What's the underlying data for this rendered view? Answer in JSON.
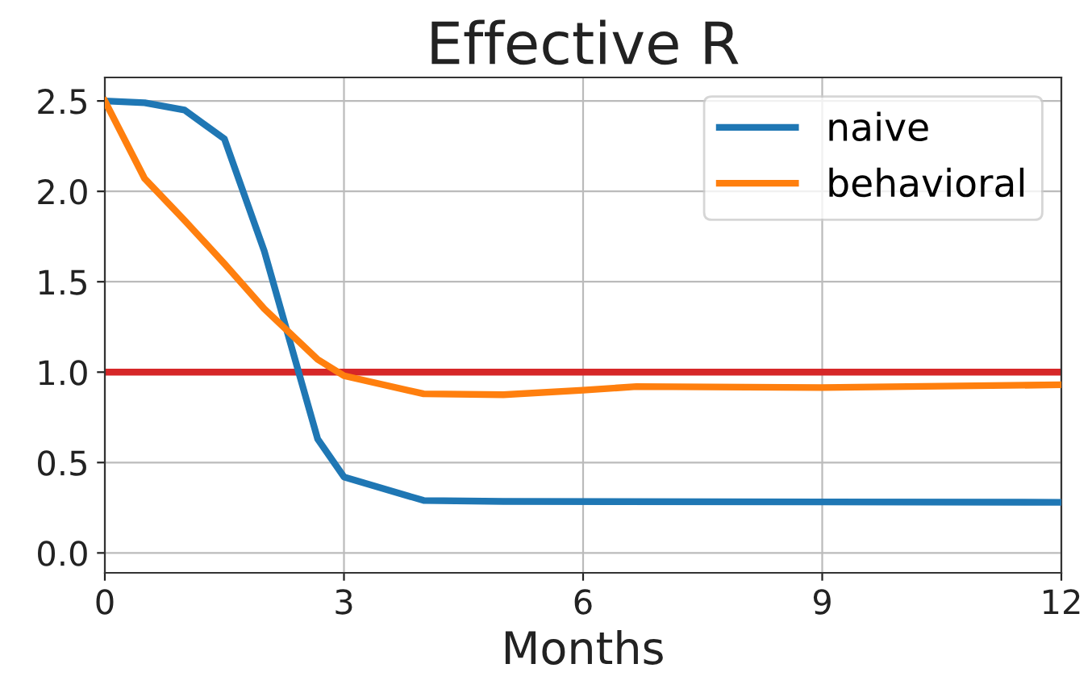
{
  "chart_data": {
    "type": "line",
    "title": "Effective R",
    "xlabel": "Months",
    "xlim": [
      0,
      12
    ],
    "xticks": [
      0,
      3,
      6,
      9,
      12
    ],
    "ylim": [
      -0.11,
      2.63
    ],
    "yticks": [
      {
        "value": 0,
        "label": "0.0"
      },
      {
        "value": 0.5,
        "label": "0.5"
      },
      {
        "value": 1,
        "label": "1.0"
      },
      {
        "value": 1.5,
        "label": "1.5"
      },
      {
        "value": 2,
        "label": "2.0"
      },
      {
        "value": 2.5,
        "label": "2.5"
      }
    ],
    "grid": true,
    "legend": "top right",
    "line_style": "solid",
    "marker": "none",
    "series": [
      {
        "name": "naive",
        "color": "#1f77b4",
        "x": [
          0,
          0.5,
          1,
          1.5,
          2,
          2.67,
          3,
          4,
          5,
          12
        ],
        "values": [
          2.5,
          2.49,
          2.45,
          2.29,
          1.67,
          0.63,
          0.42,
          0.29,
          0.285,
          0.28
        ]
      },
      {
        "name": "behavioral",
        "color": "#ff7f0e",
        "x": [
          0,
          0.5,
          1,
          1.5,
          2,
          2.67,
          3,
          4,
          5,
          6,
          6.67,
          9,
          12
        ],
        "values": [
          2.5,
          2.07,
          1.84,
          1.6,
          1.35,
          1.07,
          0.98,
          0.88,
          0.875,
          0.9,
          0.92,
          0.915,
          0.93
        ]
      }
    ],
    "ref_lines": [
      {
        "axis": "y",
        "value": 1.0,
        "color": "#d62728"
      }
    ]
  }
}
